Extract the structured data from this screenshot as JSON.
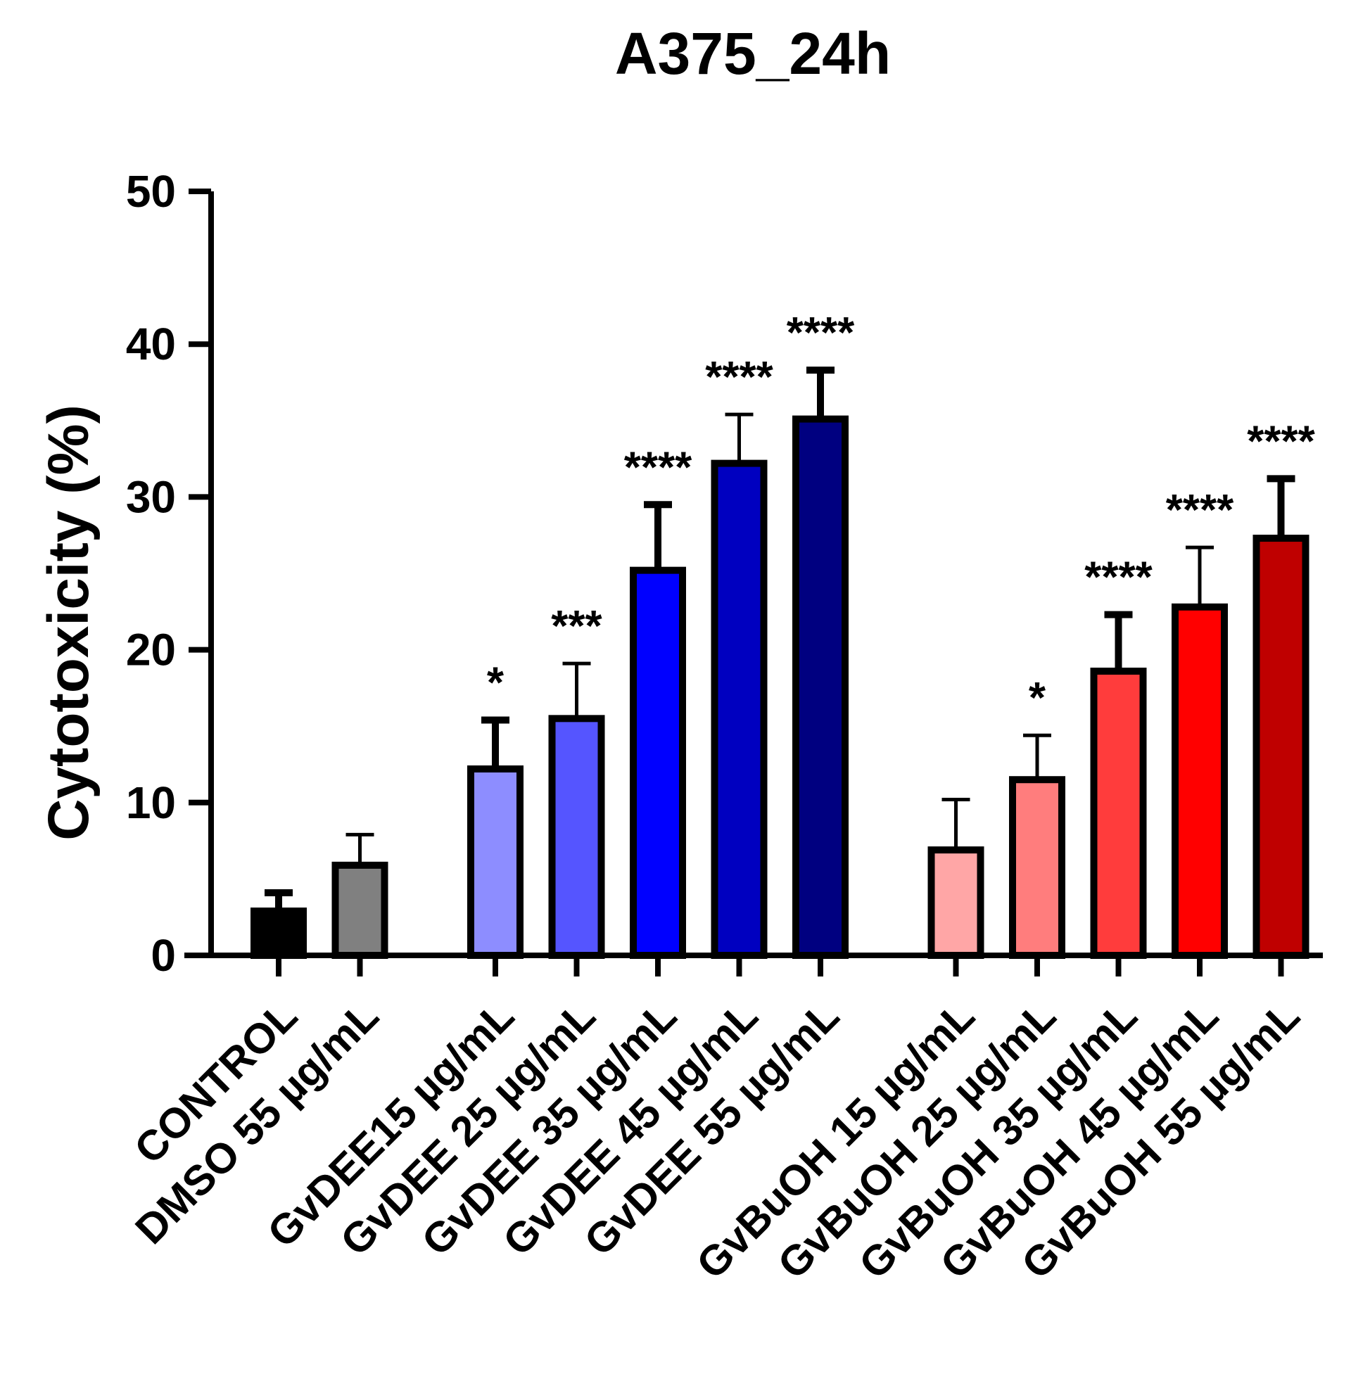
{
  "chart_data": {
    "type": "bar",
    "title": "A375_24h",
    "xlabel": "",
    "ylabel": "Cytotoxicity (%)",
    "ylim": [
      0,
      50
    ],
    "yticks": [
      "0",
      "10",
      "20",
      "30",
      "40",
      "50"
    ],
    "grid": false,
    "categories": [
      "CONTROL",
      "DMSO 55 µg/mL",
      "GvDEE15 µg/mL",
      "GvDEE 25 µg/mL",
      "GvDEE 35 µg/mL",
      "GvDEE 45 µg/mL",
      "GvDEE 55 µg/mL",
      "GvBuOH 15 µg/mL",
      "GvBuOH 25 µg/mL",
      "GvBuOH 35 µg/mL",
      "GvBuOH 45 µg/mL",
      "GvBuOH 55 µg/mL"
    ],
    "groups": [
      0,
      0,
      1,
      1,
      1,
      1,
      1,
      2,
      2,
      2,
      2,
      2
    ],
    "values": [
      2.9,
      5.9,
      12.2,
      15.5,
      25.2,
      32.2,
      35.1,
      6.9,
      11.5,
      18.6,
      22.8,
      27.3
    ],
    "errors": [
      1.2,
      2.0,
      3.2,
      3.6,
      4.3,
      3.2,
      3.2,
      3.3,
      2.9,
      3.7,
      3.9,
      3.9
    ],
    "significance": [
      "",
      "",
      "*",
      "***",
      "****",
      "****",
      "****",
      "",
      "*",
      "****",
      "****",
      "****"
    ],
    "colors": [
      "#000000",
      "#808080",
      "#8d8dff",
      "#5555ff",
      "#0000ff",
      "#0000c0",
      "#000080",
      "#ffa6a6",
      "#ff7d7d",
      "#ff3c3c",
      "#ff0000",
      "#bf0000"
    ]
  }
}
